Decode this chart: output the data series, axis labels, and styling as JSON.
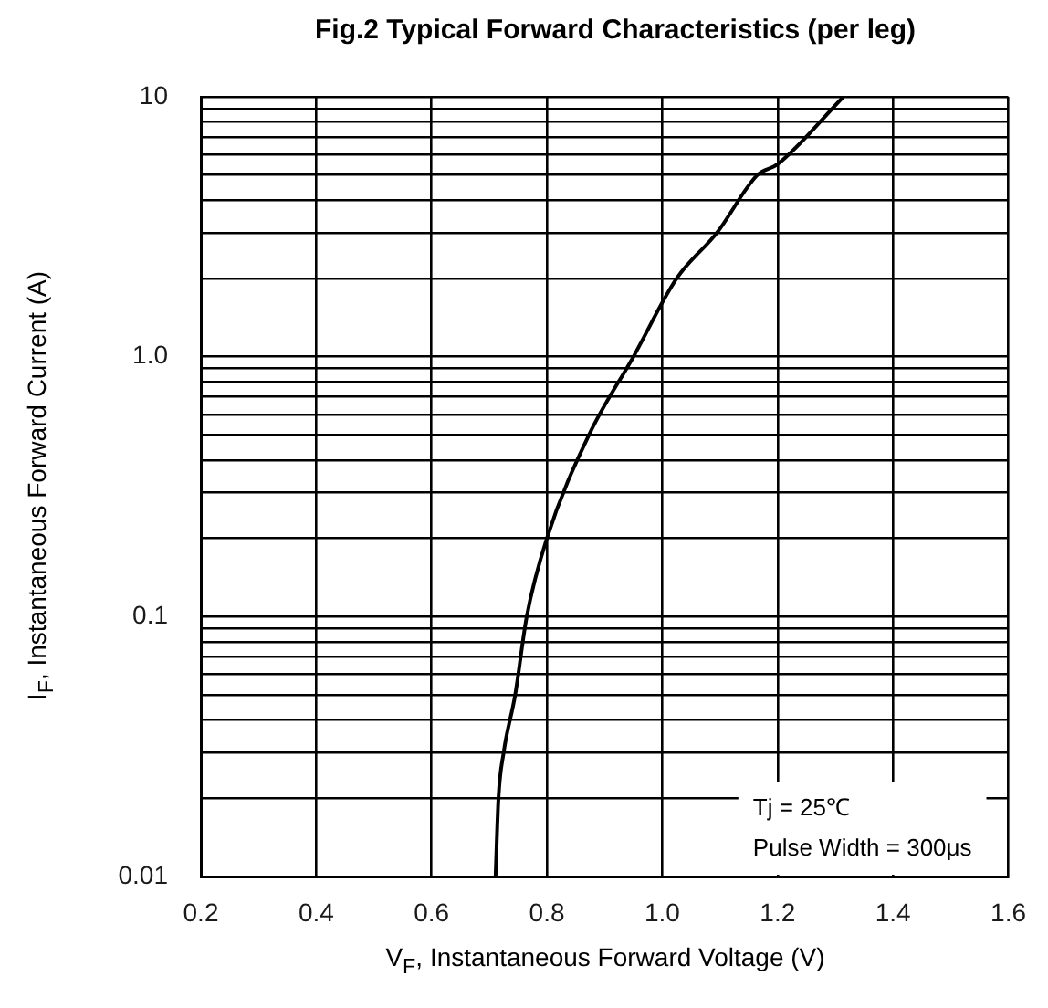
{
  "chart_data": {
    "type": "line",
    "title": "Fig.2 Typical Forward Characteristics (per leg)",
    "xlabel": "V$_{F}$, Instantaneous Forward Voltage (V)",
    "ylabel": "I$_{F}$, Instantaneous Forward Current (A)",
    "annotations": [
      "Tj = 25℃",
      "Pulse Width = 300μs"
    ],
    "series": [
      {
        "color": "#000000",
        "x": [
          0.711,
          0.716,
          0.725,
          0.745,
          0.765,
          0.8,
          0.873,
          0.95,
          1.025,
          1.095,
          1.165,
          1.2,
          1.314
        ],
        "values": [
          0.01,
          0.02,
          0.03,
          0.05,
          0.1,
          0.2,
          0.5,
          1,
          2,
          3,
          5,
          5.5,
          10
        ]
      }
    ],
    "log": "y",
    "xlim": [
      0.2,
      1.6
    ],
    "xticks": [
      0.2,
      0.4,
      0.6,
      0.8,
      {
        "value": 1,
        "label": "1.0"
      },
      1.2,
      1.4,
      1.6
    ],
    "ylim": [
      0.01,
      10
    ],
    "yticks": [
      {
        "value": 0.01,
        "label": "0.01"
      },
      {
        "value": 0.02,
        "label": null
      },
      {
        "value": 0.03,
        "label": null
      },
      {
        "value": 0.04,
        "label": null
      },
      {
        "value": 0.05,
        "label": null
      },
      {
        "value": 0.06,
        "label": null
      },
      {
        "value": 0.07,
        "label": null
      },
      {
        "value": 0.08,
        "label": null
      },
      {
        "value": 0.09,
        "label": null
      },
      {
        "value": 0.1,
        "label": "0.1"
      },
      {
        "value": 0.2,
        "label": null
      },
      {
        "value": 0.3,
        "label": null
      },
      {
        "value": 0.4,
        "label": null
      },
      {
        "value": 0.5,
        "label": null
      },
      {
        "value": 0.6,
        "label": null
      },
      {
        "value": 0.7,
        "label": null
      },
      {
        "value": 0.8,
        "label": null
      },
      {
        "value": 0.9,
        "label": null
      },
      {
        "value": 1,
        "label": "1.0"
      },
      {
        "value": 2,
        "label": null
      },
      {
        "value": 3,
        "label": null
      },
      {
        "value": 4,
        "label": null
      },
      {
        "value": 5,
        "label": null
      },
      {
        "value": 6,
        "label": null
      },
      {
        "value": 7,
        "label": null
      },
      {
        "value": 8,
        "label": null
      },
      {
        "value": 9,
        "label": null
      },
      {
        "value": 10,
        "label": "10"
      }
    ],
    "grid": true,
    "legend": false,
    "marker": "none",
    "line_style": "solid"
  }
}
